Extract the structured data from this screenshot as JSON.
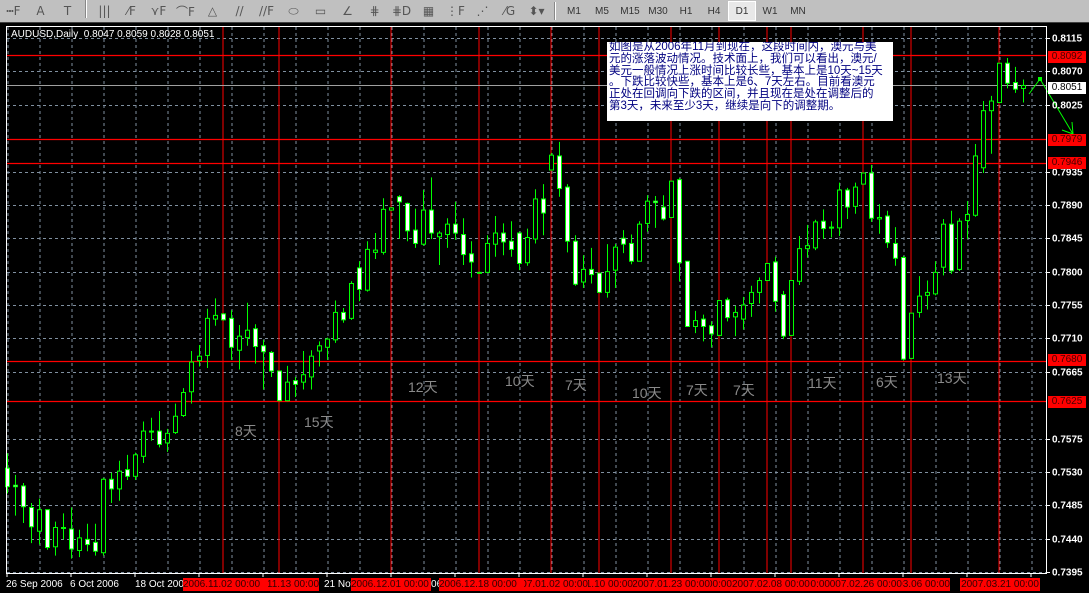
{
  "toolbar": {
    "drawing_tools": [
      "horizontal-line-fibo-icon",
      "text-icon",
      "text-label-icon",
      "vertical-lines-icon",
      "fibo-fan-icon",
      "fibo-arcs-icon",
      "fibo-channel-icon",
      "triangle-icon",
      "parallel-lines-icon",
      "equidistant-channel-icon",
      "ellipse-icon",
      "rectangle-icon",
      "angle-icon",
      "gann-line-icon",
      "andrews-pitchfork-icon",
      "grid-icon",
      "fibo-time-zones-icon",
      "gann-fan-icon",
      "gann-grid-icon",
      "arrows-dropdown-icon"
    ],
    "glyphs": [
      "┅F",
      "A",
      "T",
      "|||",
      "⁄F",
      "⋎F",
      "⌒F",
      "△",
      "//",
      "//F",
      "⬭",
      "▭",
      "∠",
      "⋕",
      "⋕D",
      "▦",
      "⋮F",
      "⋰",
      "⁄G",
      "⬍▾"
    ],
    "timeframes": [
      "M1",
      "M5",
      "M15",
      "M30",
      "H1",
      "H4",
      "D1",
      "W1",
      "MN"
    ],
    "selected_timeframe": "D1"
  },
  "chart": {
    "title": "AUDUSD,Daily  0.8047 0.8059 0.8028 0.8051",
    "colors": {
      "background": "#000000",
      "candle_outline": "#00ff00",
      "bull_body": "#000000",
      "bear_body": "#ffffff",
      "grid": "#8090a0",
      "level_line": "#ff0000",
      "bid_line": "#a0a0a0",
      "annotation": "#8a8a8a",
      "note_text": "#000080"
    },
    "note_lines": [
      "如图是从2006年11月到现在，这段时间内，澳元与美",
      "元的涨落波动情况。技术面上，我们可以看出，澳元/",
      "美元一般情况上涨时间比较长些，基本上是10天~15天",
      "。下跌比较快些，基本上是6、7天左右。目前看澳元",
      "正处在回调向下跌的区间，并且现在是处在调整后的",
      "第3天，未来至少3天，继续是向下的调整期。"
    ],
    "annotations": [
      "8天",
      "15天",
      "12天",
      "10天",
      "7天",
      "10天",
      "7天",
      "7天",
      "11天",
      "6天",
      "13天"
    ],
    "x_axis_labels": [
      "26 Sep 2006",
      "6 Oct 2006",
      "18 Oct 2006",
      "21 Nov 2006",
      "1 Dec 2006"
    ],
    "vline_labels": [
      "2006.11.02 00:00",
      "2006.11.13 00:00",
      "2006.12.01 00:00",
      "2006.12.18 00:00",
      "2007.01.02 00:00",
      "2007.01.10 00:00",
      "2007.01.23 00:00",
      "2007.01.31 00:00",
      "2007.02.08 00:00",
      "2007.02.13 00:00",
      "2007.02.26 00:00",
      "2007.03.06 00:00",
      "2007.03.21 00:00"
    ],
    "price_labels": {
      "levels": [
        "0.8092",
        "0.7979",
        "0.7946",
        "0.7680",
        "0.7625"
      ],
      "bid": "0.8051"
    }
  },
  "chart_data": {
    "type": "candlestick",
    "symbol": "AUDUSD",
    "timeframe": "Daily",
    "ylim": [
      0.7395,
      0.8115
    ],
    "y_ticks": [
      "0.8115",
      "0.8070",
      "0.8025",
      "0.7935",
      "0.7890",
      "0.7845",
      "0.7800",
      "0.7755",
      "0.7710",
      "0.7665",
      "0.7575",
      "0.7530",
      "0.7485",
      "0.7440",
      "0.7395"
    ],
    "grid": true,
    "horizontal_levels": [
      0.8092,
      0.7979,
      0.7946,
      0.768,
      0.7625
    ],
    "bid": 0.8051,
    "ohlc": [
      [
        0.7535,
        0.7555,
        0.7501,
        0.751
      ],
      [
        0.7512,
        0.7526,
        0.7471,
        0.751
      ],
      [
        0.7511,
        0.7515,
        0.7461,
        0.7483
      ],
      [
        0.7482,
        0.7488,
        0.7434,
        0.7456
      ],
      [
        0.745,
        0.7494,
        0.7432,
        0.7479
      ],
      [
        0.7479,
        0.7479,
        0.7425,
        0.7428
      ],
      [
        0.7429,
        0.7463,
        0.7417,
        0.7455
      ],
      [
        0.7455,
        0.7474,
        0.7439,
        0.7455
      ],
      [
        0.7453,
        0.7482,
        0.7413,
        0.7426
      ],
      [
        0.7424,
        0.7452,
        0.7415,
        0.7441
      ],
      [
        0.7439,
        0.746,
        0.7423,
        0.7432
      ],
      [
        0.7435,
        0.746,
        0.7417,
        0.7423
      ],
      [
        0.7421,
        0.7522,
        0.7417,
        0.752
      ],
      [
        0.752,
        0.7529,
        0.7488,
        0.7507
      ],
      [
        0.7507,
        0.7545,
        0.7491,
        0.7531
      ],
      [
        0.7533,
        0.7553,
        0.7519,
        0.7524
      ],
      [
        0.7524,
        0.7556,
        0.7519,
        0.7553
      ],
      [
        0.7551,
        0.7598,
        0.7542,
        0.7585
      ],
      [
        0.7585,
        0.7603,
        0.7572,
        0.7584
      ],
      [
        0.7585,
        0.7612,
        0.7563,
        0.7567
      ],
      [
        0.7569,
        0.7588,
        0.7557,
        0.7582
      ],
      [
        0.7583,
        0.7622,
        0.7581,
        0.7605
      ],
      [
        0.7606,
        0.7643,
        0.7604,
        0.7637
      ],
      [
        0.7638,
        0.7693,
        0.7622,
        0.7678
      ],
      [
        0.768,
        0.7701,
        0.7672,
        0.7686
      ],
      [
        0.7687,
        0.775,
        0.767,
        0.7737
      ],
      [
        0.7736,
        0.7764,
        0.7727,
        0.7741
      ],
      [
        0.7743,
        0.7744,
        0.7734,
        0.7735
      ],
      [
        0.7737,
        0.7748,
        0.7681,
        0.7698
      ],
      [
        0.7694,
        0.7728,
        0.7668,
        0.7713
      ],
      [
        0.7711,
        0.7758,
        0.77,
        0.7721
      ],
      [
        0.7723,
        0.7729,
        0.7676,
        0.7699
      ],
      [
        0.77,
        0.7708,
        0.7641,
        0.7692
      ],
      [
        0.7691,
        0.7693,
        0.7658,
        0.7666
      ],
      [
        0.7666,
        0.7666,
        0.7625,
        0.7626
      ],
      [
        0.7626,
        0.7673,
        0.7625,
        0.7651
      ],
      [
        0.7653,
        0.7658,
        0.7631,
        0.7648
      ],
      [
        0.7651,
        0.7693,
        0.7641,
        0.7661
      ],
      [
        0.7658,
        0.7694,
        0.7641,
        0.7686
      ],
      [
        0.7693,
        0.7706,
        0.7672,
        0.77
      ],
      [
        0.7698,
        0.7711,
        0.7681,
        0.7709
      ],
      [
        0.7708,
        0.7761,
        0.7704,
        0.7745
      ],
      [
        0.7745,
        0.7751,
        0.7731,
        0.7735
      ],
      [
        0.7737,
        0.7787,
        0.7735,
        0.7784
      ],
      [
        0.7805,
        0.7814,
        0.776,
        0.7776
      ],
      [
        0.7775,
        0.7841,
        0.7773,
        0.783
      ],
      [
        0.7826,
        0.7852,
        0.7817,
        0.7829
      ],
      [
        0.7826,
        0.7899,
        0.7823,
        0.7884
      ],
      [
        0.7883,
        0.7886,
        0.7882,
        0.7886
      ],
      [
        0.7901,
        0.7903,
        0.7844,
        0.7894
      ],
      [
        0.7892,
        0.7893,
        0.7841,
        0.7855
      ],
      [
        0.7856,
        0.7885,
        0.7832,
        0.7838
      ],
      [
        0.7837,
        0.791,
        0.7835,
        0.7883
      ],
      [
        0.7883,
        0.7927,
        0.7844,
        0.7852
      ],
      [
        0.7847,
        0.7855,
        0.7809,
        0.7852
      ],
      [
        0.785,
        0.7872,
        0.7832,
        0.7864
      ],
      [
        0.7864,
        0.7894,
        0.7843,
        0.7852
      ],
      [
        0.785,
        0.7872,
        0.7809,
        0.7823
      ],
      [
        0.7824,
        0.7841,
        0.7792,
        0.7813
      ],
      [
        0.7799,
        0.78,
        0.7798,
        0.7799
      ],
      [
        0.7799,
        0.7849,
        0.7798,
        0.7838
      ],
      [
        0.7837,
        0.7875,
        0.782,
        0.7852
      ],
      [
        0.7852,
        0.7865,
        0.7822,
        0.784
      ],
      [
        0.7841,
        0.7868,
        0.782,
        0.783
      ],
      [
        0.7852,
        0.7854,
        0.7802,
        0.7811
      ],
      [
        0.7812,
        0.7858,
        0.7808,
        0.7846
      ],
      [
        0.7844,
        0.7911,
        0.7838,
        0.7898
      ],
      [
        0.7898,
        0.7918,
        0.7849,
        0.7879
      ],
      [
        0.7937,
        0.796,
        0.7937,
        0.7957
      ],
      [
        0.7956,
        0.7975,
        0.7901,
        0.7912
      ],
      [
        0.7914,
        0.7918,
        0.7826,
        0.7841
      ],
      [
        0.7841,
        0.7849,
        0.7781,
        0.7783
      ],
      [
        0.7786,
        0.7822,
        0.7778,
        0.7803
      ],
      [
        0.7803,
        0.7832,
        0.7784,
        0.7796
      ],
      [
        0.7798,
        0.7798,
        0.7771,
        0.7772
      ],
      [
        0.7772,
        0.7837,
        0.7765,
        0.78
      ],
      [
        0.7802,
        0.7837,
        0.7778,
        0.7833
      ],
      [
        0.7845,
        0.7856,
        0.7825,
        0.7837
      ],
      [
        0.7838,
        0.785,
        0.781,
        0.7814
      ],
      [
        0.7814,
        0.7868,
        0.7814,
        0.7864
      ],
      [
        0.7865,
        0.7903,
        0.7854,
        0.7895
      ],
      [
        0.7895,
        0.7902,
        0.7859,
        0.7893
      ],
      [
        0.7887,
        0.7903,
        0.7869,
        0.7871
      ],
      [
        0.7873,
        0.7922,
        0.7873,
        0.7922
      ],
      [
        0.7924,
        0.7926,
        0.7787,
        0.7812
      ],
      [
        0.7814,
        0.7814,
        0.7726,
        0.7726
      ],
      [
        0.7726,
        0.7747,
        0.7717,
        0.7734
      ],
      [
        0.7736,
        0.7742,
        0.7706,
        0.7726
      ],
      [
        0.7727,
        0.7733,
        0.7698,
        0.7716
      ],
      [
        0.7714,
        0.7761,
        0.7714,
        0.7761
      ],
      [
        0.7762,
        0.7765,
        0.7733,
        0.7738
      ],
      [
        0.7739,
        0.7754,
        0.7713,
        0.7745
      ],
      [
        0.7736,
        0.7766,
        0.7722,
        0.7755
      ],
      [
        0.7757,
        0.7781,
        0.7739,
        0.7772
      ],
      [
        0.7772,
        0.7792,
        0.7757,
        0.7788
      ],
      [
        0.7788,
        0.7811,
        0.7788,
        0.7811
      ],
      [
        0.7813,
        0.782,
        0.7746,
        0.776
      ],
      [
        0.7769,
        0.7774,
        0.7709,
        0.7713
      ],
      [
        0.7714,
        0.7788,
        0.7714,
        0.7788
      ],
      [
        0.7787,
        0.7848,
        0.7782,
        0.7831
      ],
      [
        0.7831,
        0.7863,
        0.7819,
        0.7835
      ],
      [
        0.7832,
        0.787,
        0.7829,
        0.7867
      ],
      [
        0.7868,
        0.7884,
        0.7844,
        0.7858
      ],
      [
        0.786,
        0.7868,
        0.7846,
        0.786
      ],
      [
        0.7859,
        0.792,
        0.7848,
        0.791
      ],
      [
        0.791,
        0.7913,
        0.7871,
        0.7887
      ],
      [
        0.7888,
        0.792,
        0.7878,
        0.7914
      ],
      [
        0.7918,
        0.7933,
        0.7918,
        0.7933
      ],
      [
        0.7933,
        0.7944,
        0.7867,
        0.7872
      ],
      [
        0.7871,
        0.7891,
        0.7851,
        0.7873
      ],
      [
        0.7875,
        0.7882,
        0.7832,
        0.7839
      ],
      [
        0.7838,
        0.786,
        0.7808,
        0.7818
      ],
      [
        0.7819,
        0.7821,
        0.768,
        0.7682
      ],
      [
        0.7683,
        0.7744,
        0.7683,
        0.7744
      ],
      [
        0.7745,
        0.7794,
        0.7738,
        0.7767
      ],
      [
        0.7768,
        0.7788,
        0.7749,
        0.7772
      ],
      [
        0.777,
        0.7814,
        0.7768,
        0.7799
      ],
      [
        0.7806,
        0.7871,
        0.7795,
        0.7864
      ],
      [
        0.7864,
        0.7882,
        0.7797,
        0.7801
      ],
      [
        0.7803,
        0.7872,
        0.7801,
        0.7868
      ],
      [
        0.7869,
        0.7895,
        0.7844,
        0.7877
      ],
      [
        0.7876,
        0.7972,
        0.7874,
        0.7956
      ],
      [
        0.794,
        0.803,
        0.7933,
        0.8017
      ],
      [
        0.8017,
        0.8037,
        0.7959,
        0.803
      ],
      [
        0.8028,
        0.8081,
        0.8028,
        0.8081
      ],
      [
        0.8081,
        0.8088,
        0.8047,
        0.8054
      ],
      [
        0.8055,
        0.8076,
        0.8041,
        0.8046
      ],
      [
        0.8047,
        0.8059,
        0.8028,
        0.8051
      ]
    ]
  }
}
